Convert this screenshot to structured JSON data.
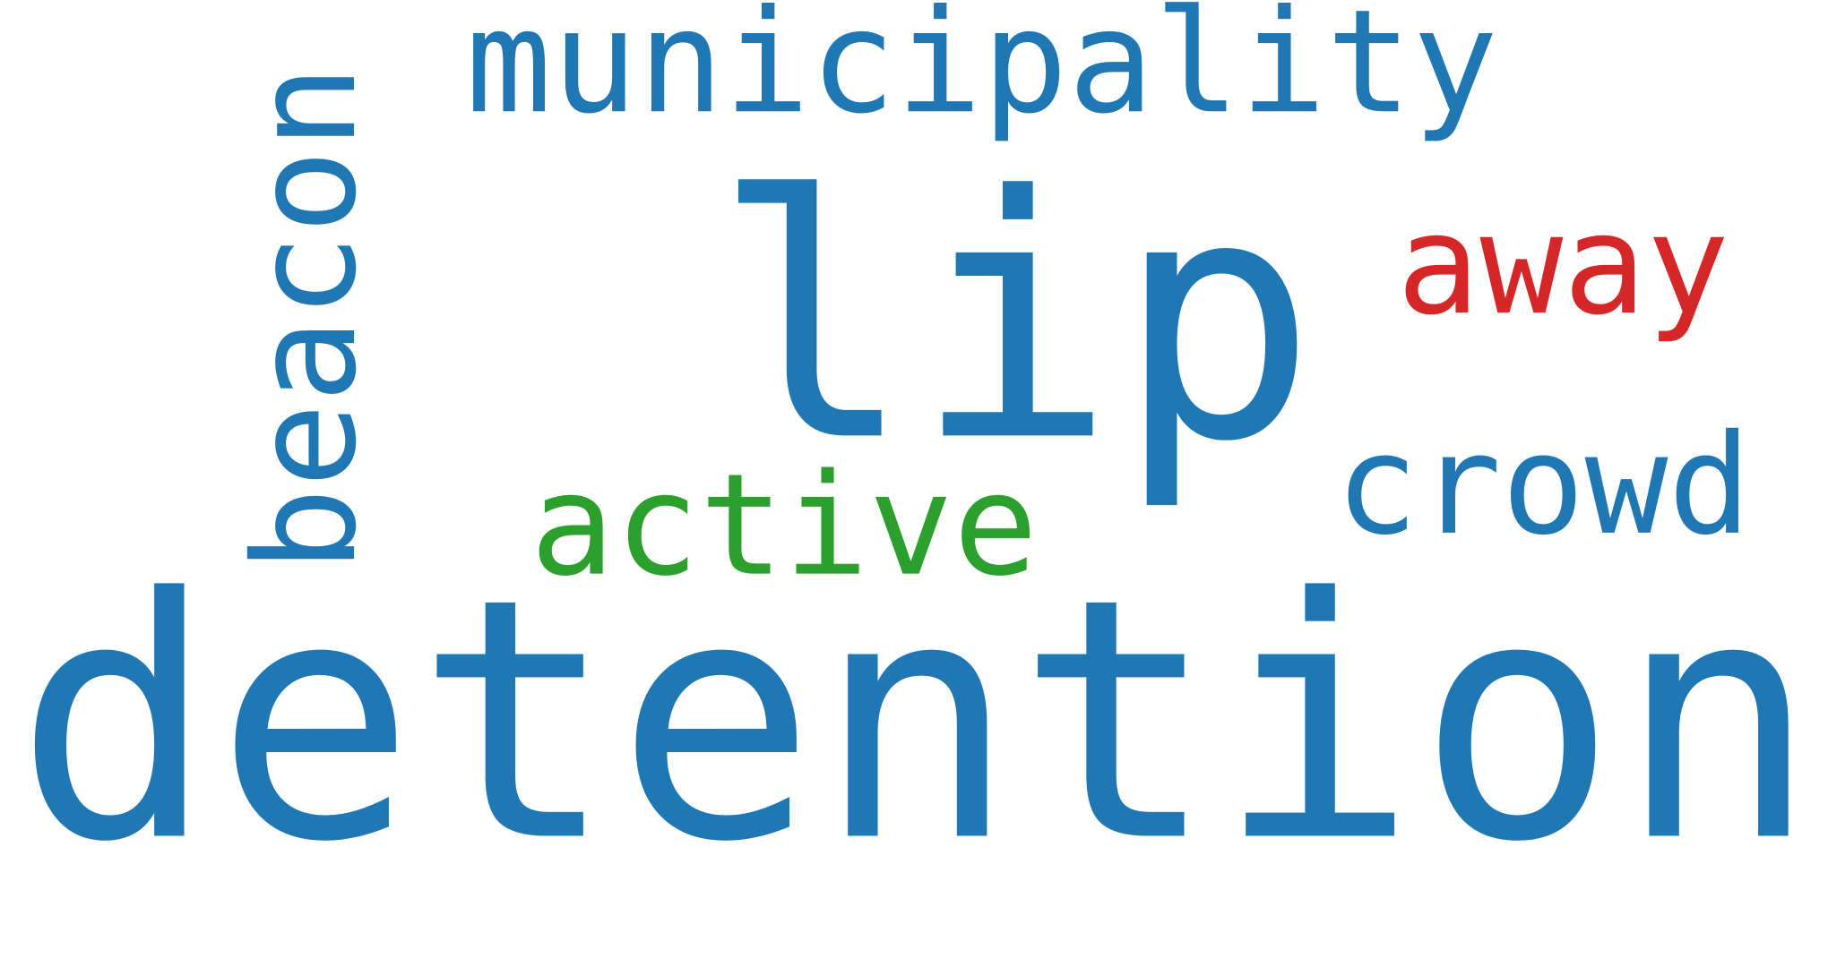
{
  "chart_data": {
    "type": "wordcloud",
    "words": [
      {
        "text": "detention",
        "color": "#1f77b4"
      },
      {
        "text": "lip",
        "color": "#1f77b4"
      },
      {
        "text": "municipality",
        "color": "#1f77b4"
      },
      {
        "text": "away",
        "color": "#d62728"
      },
      {
        "text": "crowd",
        "color": "#1f77b4"
      },
      {
        "text": "active",
        "color": "#2ca02c"
      },
      {
        "text": "beacon",
        "color": "#1f77b4"
      }
    ]
  }
}
